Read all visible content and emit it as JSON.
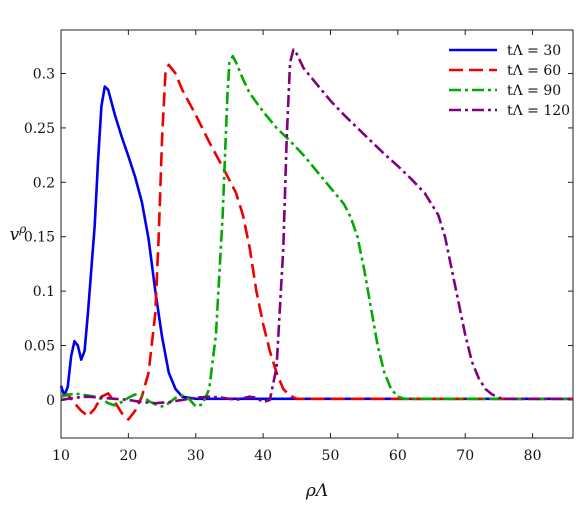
{
  "chart_data": {
    "type": "line",
    "title": "",
    "xlabel": "ρΛ",
    "ylabel": "v^ρ",
    "xlim": [
      10,
      86
    ],
    "ylim": [
      -0.035,
      0.34
    ],
    "x_ticks": [
      10,
      20,
      30,
      40,
      50,
      60,
      70,
      80
    ],
    "y_ticks": [
      0,
      0.05,
      0.1,
      0.15,
      0.2,
      0.25,
      0.3
    ],
    "y_tick_labels": [
      "0",
      "0.05",
      "0.1",
      "0.15",
      "0.2",
      "0.25",
      "0.3"
    ],
    "grid": false,
    "legend_position": "top-right",
    "series": [
      {
        "name": "tΛ = 30",
        "color": "#0000ee",
        "dash": "solid",
        "points": [
          [
            10,
            0.013
          ],
          [
            10.5,
            0.004
          ],
          [
            11,
            0.012
          ],
          [
            11.5,
            0.04
          ],
          [
            12,
            0.054
          ],
          [
            12.5,
            0.05
          ],
          [
            13,
            0.037
          ],
          [
            13.5,
            0.045
          ],
          [
            14,
            0.08
          ],
          [
            15,
            0.16
          ],
          [
            15.5,
            0.22
          ],
          [
            16,
            0.27
          ],
          [
            16.5,
            0.288
          ],
          [
            17,
            0.285
          ],
          [
            18,
            0.262
          ],
          [
            19,
            0.242
          ],
          [
            20,
            0.224
          ],
          [
            21,
            0.205
          ],
          [
            22,
            0.182
          ],
          [
            23,
            0.148
          ],
          [
            24,
            0.1
          ],
          [
            25,
            0.058
          ],
          [
            26,
            0.025
          ],
          [
            27,
            0.01
          ],
          [
            28,
            0.003
          ],
          [
            30,
            0.001
          ],
          [
            35,
            0.001
          ],
          [
            86,
            0.001
          ]
        ]
      },
      {
        "name": "tΛ = 60",
        "color": "#ee0000",
        "dash": "long-dash",
        "points": [
          [
            10,
            0.003
          ],
          [
            11,
            0.005
          ],
          [
            12,
            -0.003
          ],
          [
            13,
            -0.01
          ],
          [
            14,
            -0.015
          ],
          [
            15,
            -0.008
          ],
          [
            16,
            0.003
          ],
          [
            17,
            0.006
          ],
          [
            18,
            -0.002
          ],
          [
            19,
            -0.012
          ],
          [
            20,
            -0.018
          ],
          [
            21,
            -0.01
          ],
          [
            22,
            0.003
          ],
          [
            23,
            0.025
          ],
          [
            24,
            0.08
          ],
          [
            24.5,
            0.15
          ],
          [
            25,
            0.24
          ],
          [
            25.5,
            0.3
          ],
          [
            26,
            0.308
          ],
          [
            27,
            0.3
          ],
          [
            28,
            0.285
          ],
          [
            30,
            0.262
          ],
          [
            32,
            0.237
          ],
          [
            34,
            0.214
          ],
          [
            36,
            0.19
          ],
          [
            37,
            0.17
          ],
          [
            38,
            0.14
          ],
          [
            39,
            0.1
          ],
          [
            40,
            0.07
          ],
          [
            41,
            0.045
          ],
          [
            42,
            0.025
          ],
          [
            43,
            0.01
          ],
          [
            44,
            0.004
          ],
          [
            45,
            0.001
          ],
          [
            50,
            0.001
          ],
          [
            86,
            0.001
          ]
        ]
      },
      {
        "name": "tΛ = 90",
        "color": "#00aa00",
        "dash": "dash-dot",
        "points": [
          [
            10,
            0.003
          ],
          [
            12,
            0.006
          ],
          [
            14,
            0.004
          ],
          [
            15,
            0.003
          ],
          [
            16,
            0.001
          ],
          [
            17,
            -0.003
          ],
          [
            18,
            -0.005
          ],
          [
            19,
            -0.002
          ],
          [
            20,
            0.002
          ],
          [
            21,
            0.005
          ],
          [
            22,
            0.004
          ],
          [
            23,
            -0.001
          ],
          [
            24,
            -0.004
          ],
          [
            25,
            -0.006
          ],
          [
            26,
            -0.003
          ],
          [
            27,
            0.002
          ],
          [
            28,
            0.004
          ],
          [
            29,
            0.001
          ],
          [
            30,
            -0.006
          ],
          [
            31,
            -0.004
          ],
          [
            32,
            0.01
          ],
          [
            33,
            0.06
          ],
          [
            34,
            0.17
          ],
          [
            34.7,
            0.28
          ],
          [
            35,
            0.31
          ],
          [
            35.5,
            0.316
          ],
          [
            36,
            0.31
          ],
          [
            37,
            0.295
          ],
          [
            38,
            0.282
          ],
          [
            40,
            0.265
          ],
          [
            42,
            0.25
          ],
          [
            44,
            0.238
          ],
          [
            46,
            0.225
          ],
          [
            48,
            0.21
          ],
          [
            50,
            0.195
          ],
          [
            52,
            0.18
          ],
          [
            53,
            0.168
          ],
          [
            54,
            0.15
          ],
          [
            55,
            0.12
          ],
          [
            56,
            0.085
          ],
          [
            57,
            0.05
          ],
          [
            58,
            0.025
          ],
          [
            59,
            0.01
          ],
          [
            60,
            0.003
          ],
          [
            61,
            0.001
          ],
          [
            65,
            0.001
          ],
          [
            86,
            0.001
          ]
        ]
      },
      {
        "name": "tΛ = 120",
        "color": "#800080",
        "dash": "dash-dot",
        "points": [
          [
            10,
            0.0
          ],
          [
            12,
            0.002
          ],
          [
            14,
            0.003
          ],
          [
            16,
            0.002
          ],
          [
            18,
            0.001
          ],
          [
            20,
            0.0
          ],
          [
            22,
            -0.002
          ],
          [
            24,
            -0.003
          ],
          [
            26,
            -0.002
          ],
          [
            28,
            0.0
          ],
          [
            30,
            0.002
          ],
          [
            32,
            0.003
          ],
          [
            34,
            0.002
          ],
          [
            36,
            0.0
          ],
          [
            38,
            0.003
          ],
          [
            39,
            0.002
          ],
          [
            40,
            -0.002
          ],
          [
            41,
            0.0
          ],
          [
            42,
            0.03
          ],
          [
            43,
            0.14
          ],
          [
            43.5,
            0.24
          ],
          [
            44,
            0.31
          ],
          [
            44.5,
            0.322
          ],
          [
            45,
            0.318
          ],
          [
            46,
            0.305
          ],
          [
            48,
            0.29
          ],
          [
            50,
            0.275
          ],
          [
            52,
            0.262
          ],
          [
            54,
            0.25
          ],
          [
            56,
            0.238
          ],
          [
            58,
            0.226
          ],
          [
            60,
            0.215
          ],
          [
            62,
            0.203
          ],
          [
            64,
            0.19
          ],
          [
            66,
            0.17
          ],
          [
            67,
            0.15
          ],
          [
            68,
            0.12
          ],
          [
            69,
            0.09
          ],
          [
            70,
            0.06
          ],
          [
            71,
            0.035
          ],
          [
            72,
            0.02
          ],
          [
            73,
            0.01
          ],
          [
            74,
            0.005
          ],
          [
            75,
            0.002
          ],
          [
            76,
            0.001
          ],
          [
            80,
            0.001
          ],
          [
            86,
            0.001
          ]
        ]
      }
    ]
  }
}
